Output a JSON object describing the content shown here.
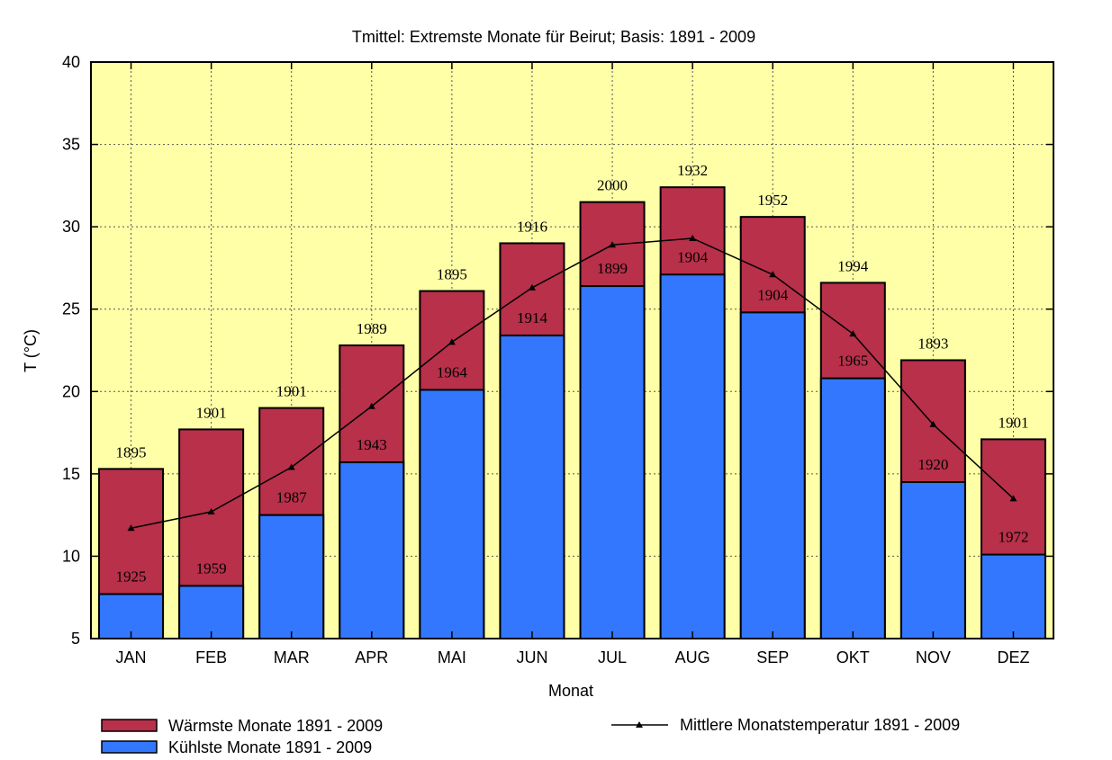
{
  "chart_data": {
    "type": "bar",
    "title": "Tmittel: Extremste Monate für Beirut; Basis: 1891 - 2009",
    "xlabel": "Monat",
    "ylabel": "T (°C)",
    "ylim": [
      5,
      40
    ],
    "yticks": [
      "5",
      "10",
      "15",
      "20",
      "25",
      "30",
      "35",
      "40"
    ],
    "categories": [
      "JAN",
      "FEB",
      "MAR",
      "APR",
      "MAI",
      "JUN",
      "JUL",
      "AUG",
      "SEP",
      "OKT",
      "NOV",
      "DEZ"
    ],
    "series": [
      {
        "name": "Wärmste Monate 1891 - 2009",
        "color": "#b8304a",
        "values": [
          15.3,
          17.7,
          19.0,
          22.8,
          26.1,
          29.0,
          31.5,
          32.4,
          30.6,
          26.6,
          21.9,
          17.1
        ],
        "years": [
          "1895",
          "1901",
          "1901",
          "1989",
          "1895",
          "1916",
          "2000",
          "1932",
          "1952",
          "1994",
          "1893",
          "1901"
        ]
      },
      {
        "name": "Kühlste Monate 1891 - 2009",
        "color": "#3377ff",
        "values": [
          7.7,
          8.2,
          12.5,
          15.7,
          20.1,
          23.4,
          26.4,
          27.1,
          24.8,
          20.8,
          14.5,
          10.1
        ],
        "years": [
          "1925",
          "1959",
          "1987",
          "1943",
          "1964",
          "1914",
          "1899",
          "1904",
          "1904",
          "1965",
          "1920",
          "1972"
        ]
      },
      {
        "name": "Mittlere Monatstemperatur 1891 - 2009",
        "type": "line",
        "color": "#000000",
        "values": [
          11.7,
          12.7,
          15.4,
          19.1,
          23.0,
          26.3,
          28.9,
          29.3,
          27.1,
          23.5,
          18.0,
          13.5
        ]
      }
    ],
    "legend": {
      "position": "bottom"
    },
    "grid": true,
    "background": "#ffffa8"
  }
}
